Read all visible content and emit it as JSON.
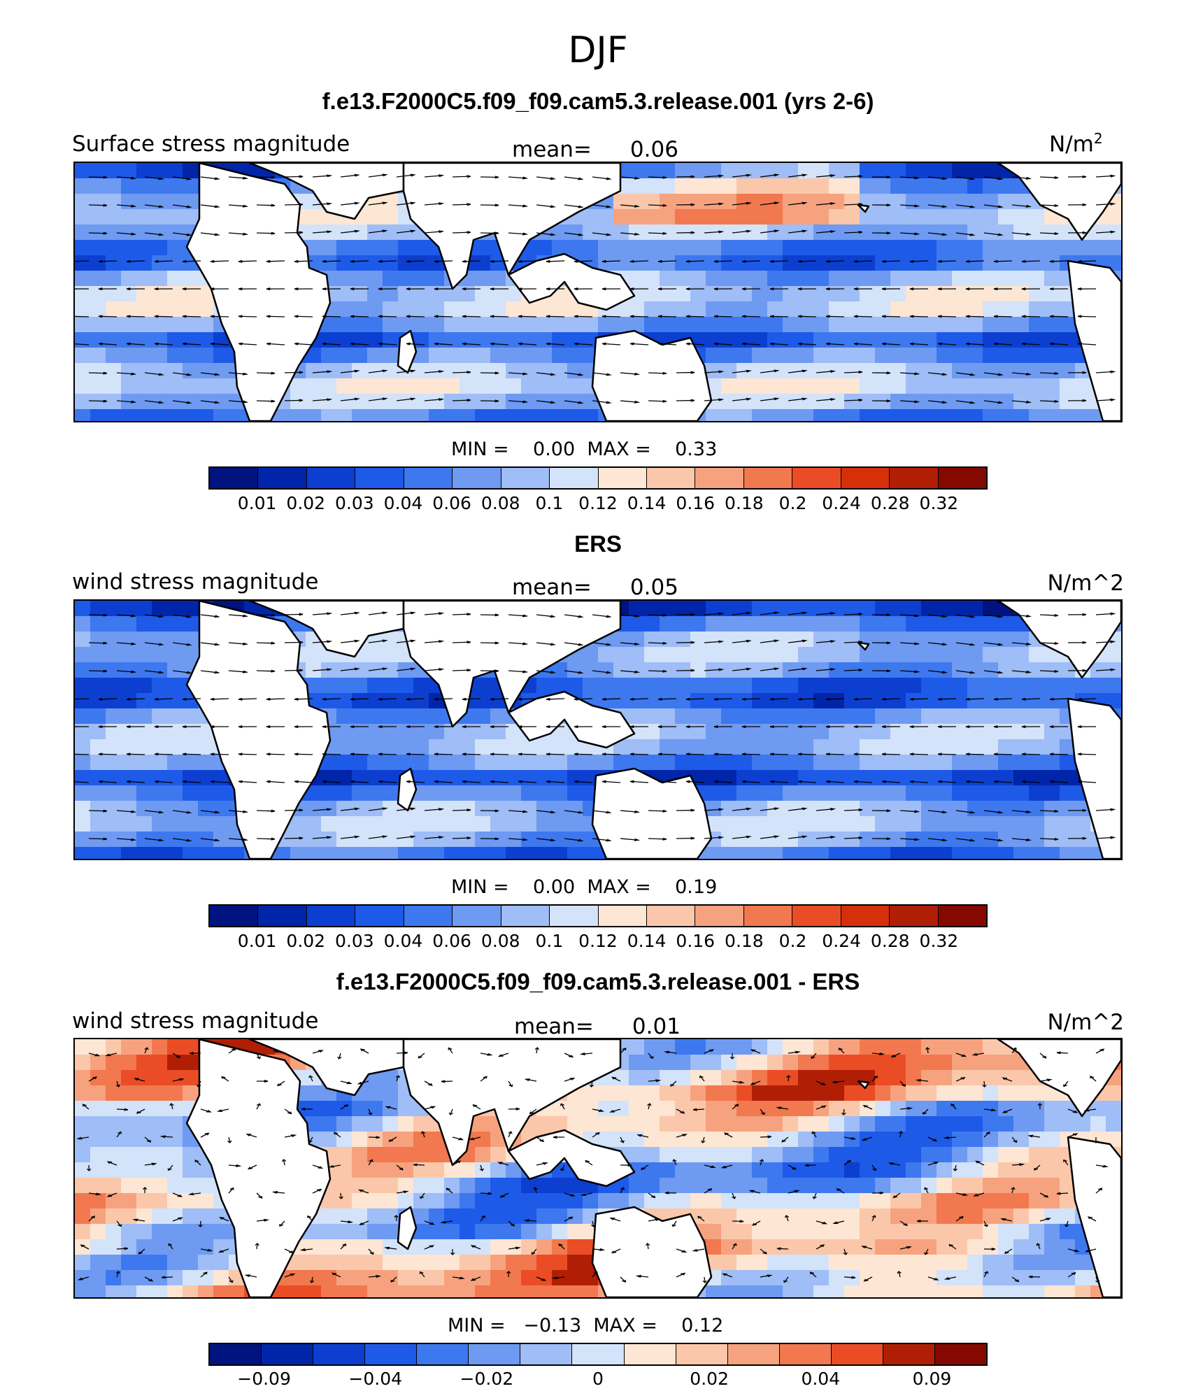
{
  "season": "DJF",
  "panels": [
    {
      "title": "f.e13.F2000C5.f09_f09.cam5.3.release.001 (yrs 2-6)",
      "left_label": "Surface stress magnitude",
      "mean_label": "mean=",
      "mean_value": "0.06",
      "unit_label": "N/m",
      "unit_sup": "2",
      "min_label": "MIN =",
      "min_value": "0.00",
      "max_label": "MAX =",
      "max_value": "0.33",
      "tick_labels": [
        "0.01",
        "0.02",
        "0.03",
        "0.04",
        "0.06",
        "0.08",
        "0.1",
        "0.12",
        "0.14",
        "0.16",
        "0.18",
        "0.2",
        "0.24",
        "0.28",
        "0.32"
      ]
    },
    {
      "title": "ERS",
      "left_label": "wind stress magnitude",
      "mean_label": "mean=",
      "mean_value": "0.05",
      "unit_label": "N/m^2",
      "unit_sup": "",
      "min_label": "MIN =",
      "min_value": "0.00",
      "max_label": "MAX =",
      "max_value": "0.19",
      "tick_labels": [
        "0.01",
        "0.02",
        "0.03",
        "0.04",
        "0.06",
        "0.08",
        "0.1",
        "0.12",
        "0.14",
        "0.16",
        "0.18",
        "0.2",
        "0.24",
        "0.28",
        "0.32"
      ]
    },
    {
      "title": "f.e13.F2000C5.f09_f09.cam5.3.release.001 - ERS",
      "left_label": "wind stress magnitude",
      "mean_label": "mean=",
      "mean_value": "0.01",
      "unit_label": "N/m^2",
      "unit_sup": "",
      "min_label": "MIN =",
      "min_value": "−0.13",
      "max_label": "MAX =",
      "max_value": "0.12",
      "tick_labels": [
        "−0.09",
        "",
        "−0.04",
        "",
        "−0.02",
        "",
        "0",
        "",
        "0.02",
        "",
        "0.04",
        "",
        "0.09"
      ]
    }
  ],
  "colors": {
    "seq_palette": [
      "#00137f",
      "#0125a8",
      "#0c3fd0",
      "#1e5ae8",
      "#3d78ef",
      "#6e9af2",
      "#9fbdf6",
      "#d3e3fa",
      "#fde6d3",
      "#fbc7aa",
      "#f7a27f",
      "#f1784f",
      "#ea4d25",
      "#d6300b",
      "#b11e06",
      "#850900"
    ],
    "div_palette": [
      "#00137f",
      "#0125a8",
      "#0c3fd0",
      "#1e5ae8",
      "#3d78ef",
      "#6e9af2",
      "#9fbdf6",
      "#d3e3fa",
      "#fde6d3",
      "#fbc7aa",
      "#f7a27f",
      "#f1784f",
      "#ea4d25",
      "#b11e06",
      "#850900"
    ],
    "land": "#ffffff",
    "coast": "#000000"
  },
  "chart_data": [
    {
      "type": "heatmap",
      "title": "f.e13.F2000C5.f09_f09.cam5.3.release.001 (yrs 2-6)",
      "field": "Surface stress magnitude",
      "units": "N/m2",
      "mean": 0.06,
      "min": 0.0,
      "max": 0.33,
      "levels": [
        0.01,
        0.02,
        0.03,
        0.04,
        0.06,
        0.08,
        0.1,
        0.12,
        0.14,
        0.16,
        0.18,
        0.2,
        0.24,
        0.28,
        0.32
      ],
      "overlay": "vectors",
      "legend": "bottom"
    },
    {
      "type": "heatmap",
      "title": "ERS",
      "field": "wind stress magnitude",
      "units": "N/m^2",
      "mean": 0.05,
      "min": 0.0,
      "max": 0.19,
      "levels": [
        0.01,
        0.02,
        0.03,
        0.04,
        0.06,
        0.08,
        0.1,
        0.12,
        0.14,
        0.16,
        0.18,
        0.2,
        0.24,
        0.28,
        0.32
      ],
      "overlay": "vectors",
      "legend": "bottom"
    },
    {
      "type": "heatmap",
      "title": "f.e13.F2000C5.f09_f09.cam5.3.release.001 - ERS",
      "field": "wind stress magnitude",
      "units": "N/m^2",
      "mean": 0.01,
      "min": -0.13,
      "max": 0.12,
      "levels": [
        -0.09,
        -0.04,
        -0.02,
        0,
        0.02,
        0.04,
        0.09
      ],
      "overlay": "vectors",
      "legend": "bottom"
    }
  ]
}
